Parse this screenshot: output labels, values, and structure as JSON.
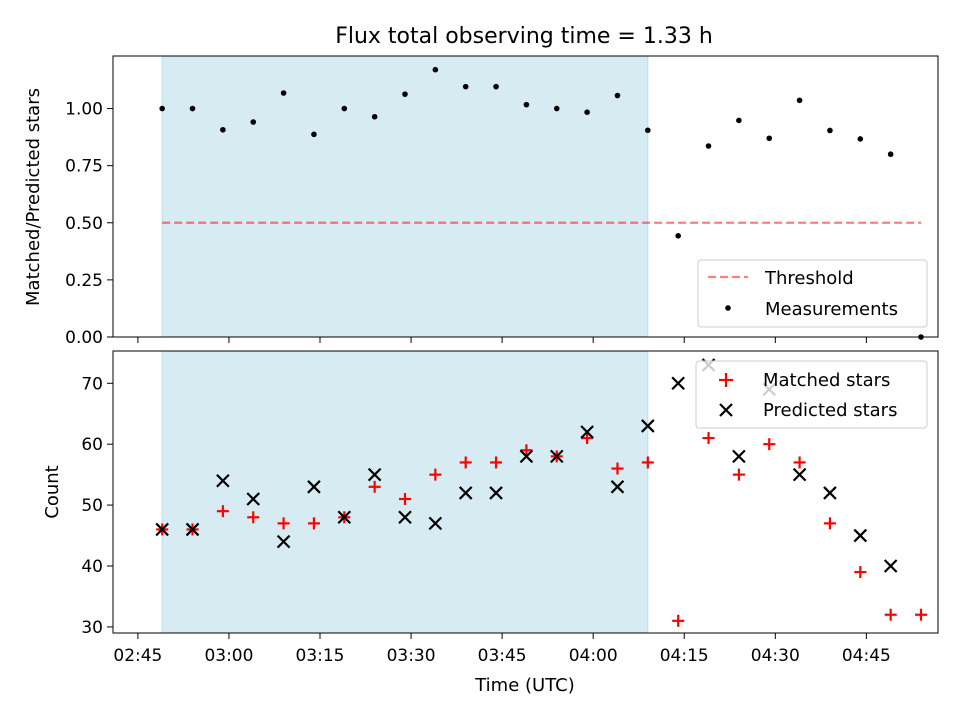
{
  "title": "Flux total observing time = 1.33 h",
  "colors": {
    "shade": "#add8e6",
    "threshold": "#ff0000",
    "measurement": "#000000",
    "matched": "#ff0000",
    "predicted": "#000000"
  },
  "x_axis": {
    "label": "Time (UTC)",
    "ticks": [
      "02:45",
      "03:00",
      "03:15",
      "03:30",
      "03:45",
      "04:00",
      "04:15",
      "04:30",
      "04:45"
    ],
    "tick_minutes": [
      165,
      180,
      195,
      210,
      225,
      240,
      255,
      270,
      285
    ],
    "range_minutes": [
      160.9,
      296.8
    ]
  },
  "chart_data": [
    {
      "type": "scatter",
      "panel": "top",
      "ylabel": "Matched/Predicted stars",
      "ylim": [
        0.0,
        1.23
      ],
      "yticks": [
        "0.00",
        "0.25",
        "0.50",
        "0.75",
        "1.00"
      ],
      "ytick_values": [
        0.0,
        0.25,
        0.5,
        0.75,
        1.0
      ],
      "shaded_region": {
        "x": [
          "02:49",
          "04:09"
        ]
      },
      "x": [
        "02:49",
        "02:54",
        "02:59",
        "03:04",
        "03:09",
        "03:14",
        "03:19",
        "03:24",
        "03:29",
        "03:34",
        "03:39",
        "03:44",
        "03:49",
        "03:54",
        "03:59",
        "04:04",
        "04:09",
        "04:14",
        "04:19",
        "04:24",
        "04:29",
        "04:34",
        "04:39",
        "04:44",
        "04:49",
        "04:54"
      ],
      "series": [
        {
          "name": "Threshold",
          "style": "dashed-line",
          "x": [
            "02:49",
            "04:54"
          ],
          "values": [
            0.5,
            0.5
          ]
        },
        {
          "name": "Measurements",
          "style": "dot",
          "values": [
            1.0,
            1.0,
            0.907,
            0.941,
            1.068,
            0.887,
            1.0,
            0.964,
            1.063,
            1.17,
            1.096,
            1.096,
            1.017,
            1.0,
            0.984,
            1.057,
            0.905,
            0.443,
            0.836,
            0.948,
            0.87,
            1.036,
            0.904,
            0.867,
            0.8,
            0.0
          ]
        }
      ],
      "legend": {
        "position": "lower right",
        "entries": [
          "Threshold",
          "Measurements"
        ]
      }
    },
    {
      "type": "scatter",
      "panel": "bottom",
      "ylabel": "Count",
      "xlabel": "Time (UTC)",
      "ylim": [
        29,
        75.3
      ],
      "yticks": [
        "30",
        "40",
        "50",
        "60",
        "70"
      ],
      "ytick_values": [
        30,
        40,
        50,
        60,
        70
      ],
      "shaded_region": {
        "x": [
          "02:49",
          "04:09"
        ]
      },
      "series": [
        {
          "name": "Matched stars",
          "marker": "+",
          "x": [
            "02:49",
            "02:54",
            "02:59",
            "03:04",
            "03:09",
            "03:14",
            "03:19",
            "03:24",
            "03:29",
            "03:34",
            "03:39",
            "03:44",
            "03:49",
            "03:54",
            "03:59",
            "04:04",
            "04:09",
            "04:14",
            "04:19",
            "04:24",
            "04:29",
            "04:34",
            "04:39",
            "04:44",
            "04:49",
            "04:54"
          ],
          "values": [
            46,
            46,
            49,
            48,
            47,
            47,
            48,
            53,
            51,
            55,
            57,
            57,
            59,
            58,
            61,
            56,
            57,
            31,
            61,
            55,
            60,
            57,
            47,
            39,
            32,
            32
          ]
        },
        {
          "name": "Predicted stars",
          "marker": "x",
          "x": [
            "02:49",
            "02:54",
            "02:59",
            "03:04",
            "03:09",
            "03:14",
            "03:19",
            "03:24",
            "03:29",
            "03:34",
            "03:39",
            "03:44",
            "03:49",
            "03:54",
            "03:59",
            "04:04",
            "04:09",
            "04:14",
            "04:19",
            "04:24",
            "04:29",
            "04:34",
            "04:39",
            "04:44",
            "04:49"
          ],
          "values": [
            46,
            46,
            54,
            51,
            44,
            53,
            48,
            55,
            48,
            47,
            52,
            52,
            58,
            58,
            62,
            53,
            63,
            70,
            73,
            58,
            69,
            55,
            52,
            45,
            40
          ]
        }
      ],
      "legend": {
        "position": "upper right",
        "entries": [
          "Matched stars",
          "Predicted stars"
        ]
      }
    }
  ]
}
